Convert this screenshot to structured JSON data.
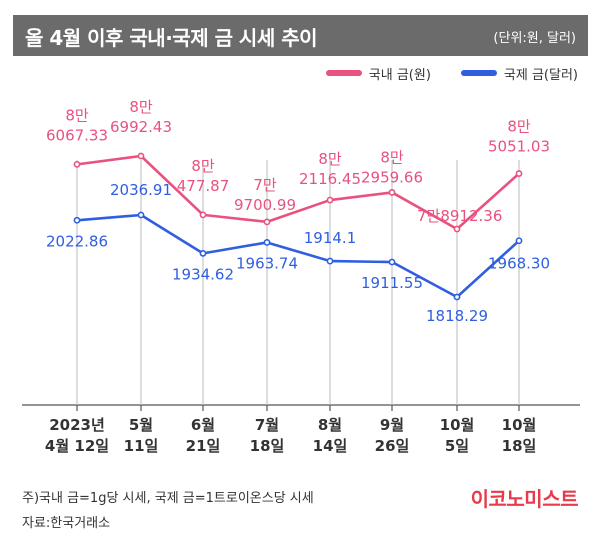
{
  "header": {
    "title": "올 4월 이후 국내·국제 금 시세 추이",
    "unit": "(단위:원, 달러)"
  },
  "colors": {
    "domestic": "#e9527f",
    "international": "#2f5fe0",
    "title_bg": "#6b6b6b",
    "brand": "#e83a4a"
  },
  "chart_data": {
    "type": "line",
    "categories": [
      [
        "2023년",
        "4월 12일"
      ],
      [
        "5월",
        "11일"
      ],
      [
        "6월",
        "21일"
      ],
      [
        "7월",
        "18일"
      ],
      [
        "8월",
        "14일"
      ],
      [
        "9월",
        "26일"
      ],
      [
        "10월",
        "5일"
      ],
      [
        "10월",
        "18일"
      ]
    ],
    "series": [
      {
        "name": "국내 금(원)",
        "values": [
          86067.33,
          86992.43,
          80477.87,
          79700.99,
          82116.45,
          82959.66,
          78912.36,
          85051.03
        ],
        "labels": [
          [
            "8만",
            "6067.33"
          ],
          [
            "8만",
            "6992.43"
          ],
          [
            "8만",
            "477.87"
          ],
          [
            "7만",
            "9700.99"
          ],
          [
            "8만",
            "2116.45"
          ],
          [
            "8만",
            "2959.66"
          ],
          [
            "7만8912.36"
          ],
          [
            "8만",
            "5051.03"
          ]
        ]
      },
      {
        "name": "국제 금(달러)",
        "values": [
          2022.86,
          2036.91,
          1934.62,
          1963.74,
          1914.1,
          1911.55,
          1818.29,
          1968.3
        ],
        "labels": [
          [
            "2022.86"
          ],
          [
            "2036.91"
          ],
          [
            "1934.62"
          ],
          [
            "1963.74"
          ],
          [
            "1914.1"
          ],
          [
            "1911.55"
          ],
          [
            "1818.29"
          ],
          [
            "1968.30"
          ]
        ]
      }
    ],
    "grid": false,
    "legend_position": "top-right"
  },
  "footer": {
    "note": "주)국내 금=1g당 시세, 국제 금=1트로이온스당 시세",
    "source": "자료:한국거래소",
    "brand": "이코노미스트"
  }
}
